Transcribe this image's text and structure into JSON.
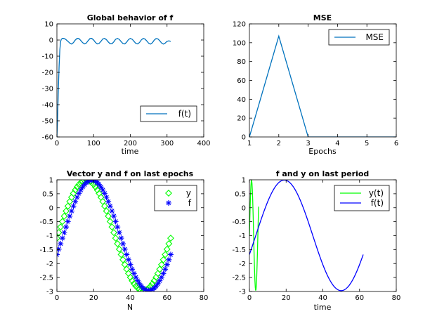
{
  "chart_data": [
    {
      "type": "line",
      "title": "Global behavior of f",
      "xlabel": "time",
      "ylabel": "",
      "xlim": [
        0,
        400
      ],
      "ylim": [
        -60,
        10
      ],
      "xticks": [
        "0",
        "100",
        "200",
        "300",
        "400"
      ],
      "yticks": [
        "10",
        "0",
        "-10",
        "-20",
        "-30",
        "-40",
        "-50",
        "-60"
      ],
      "legend": "bottom-right",
      "series": [
        {
          "name": "f(t)",
          "color": "#0072bd",
          "x": [
            0,
            2,
            4,
            6,
            8,
            10,
            12,
            15,
            18,
            21,
            24,
            27,
            30,
            35,
            40,
            45,
            50,
            55,
            60,
            65,
            70,
            75,
            80,
            85,
            90,
            95,
            100,
            105,
            110,
            115,
            120,
            125,
            130,
            135,
            140,
            145,
            150,
            155,
            160,
            165,
            170,
            175,
            180,
            185,
            190,
            195,
            200,
            205,
            210,
            215,
            220,
            225,
            230,
            235,
            240,
            245,
            250,
            255,
            260,
            265,
            270,
            275,
            280,
            285,
            290,
            295,
            300,
            305,
            310
          ],
          "y": [
            -60,
            -47,
            -30,
            -16,
            -6,
            -1,
            0.5,
            1,
            1,
            0.8,
            0.4,
            -0.2,
            -0.8,
            -1.9,
            -2.5,
            -1.6,
            0.0,
            1.0,
            0.9,
            -0.3,
            -1.6,
            -2.4,
            -1.9,
            -0.4,
            0.9,
            1.0,
            0.0,
            -1.5,
            -2.4,
            -2.1,
            -0.8,
            0.7,
            1.0,
            0.2,
            -1.2,
            -2.3,
            -2.3,
            -1.1,
            0.5,
            1.0,
            0.4,
            -1.0,
            -2.2,
            -2.4,
            -1.3,
            0.3,
            1.0,
            0.5,
            -0.8,
            -2.1,
            -2.4,
            -1.5,
            0.1,
            1.0,
            0.6,
            -0.6,
            -2.0,
            -2.5,
            -1.7,
            -0.1,
            0.9,
            0.7,
            -0.4,
            -1.8,
            -2.5,
            -1.9,
            -0.8,
            -0.5,
            -0.8
          ]
        }
      ]
    },
    {
      "type": "line",
      "title": "MSE",
      "xlabel": "Epochs",
      "ylabel": "",
      "xlim": [
        1,
        6
      ],
      "ylim": [
        0,
        120
      ],
      "xticks": [
        "1",
        "2",
        "3",
        "4",
        "5",
        "6"
      ],
      "yticks": [
        "120",
        "100",
        "80",
        "60",
        "40",
        "20",
        "0"
      ],
      "legend": "top-right",
      "series": [
        {
          "name": "MSE",
          "color": "#0072bd",
          "x": [
            1,
            2,
            3,
            4,
            5,
            6
          ],
          "y": [
            0,
            107,
            0,
            0,
            0,
            0
          ]
        }
      ]
    },
    {
      "type": "scatter",
      "title": "Vector y and f on last epochs",
      "xlabel": "N",
      "ylabel": "",
      "xlim": [
        0,
        80
      ],
      "ylim": [
        -3,
        1
      ],
      "xticks": [
        "0",
        "20",
        "40",
        "60",
        "80"
      ],
      "yticks": [
        "1",
        "0.5",
        "0",
        "-0.5",
        "-1",
        "-1.5",
        "-2",
        "-2.5",
        "-3"
      ],
      "legend": "top-right",
      "series": [
        {
          "name": "y",
          "marker": "diamond",
          "color": "#00ff00",
          "x_start": 0,
          "x_end": 62,
          "count": 63,
          "amplitude": 1.98,
          "center": -0.99,
          "period": 62,
          "peak_at": 16
        },
        {
          "name": "f",
          "marker": "asterisk",
          "color": "#0000ff",
          "x_start": 0,
          "x_end": 62,
          "count": 63,
          "amplitude": 1.98,
          "center": -0.99,
          "period": 62,
          "peak_at": 19
        }
      ]
    },
    {
      "type": "line",
      "title": "f and y on last period",
      "xlabel": "time",
      "ylabel": "",
      "xlim": [
        0,
        80
      ],
      "ylim": [
        -3,
        1
      ],
      "xticks": [
        "0",
        "20",
        "40",
        "60",
        "80"
      ],
      "yticks": [
        "1",
        "0.5",
        "0",
        "-0.5",
        "-1",
        "-1.5",
        "-2",
        "-2.5",
        "-3"
      ],
      "legend": "top-right",
      "series": [
        {
          "name": "y(t)",
          "color": "#00ff00",
          "x_start": 0,
          "x_end": 5,
          "amplitude": 1.98,
          "center": -0.99,
          "period": 4.6,
          "peak_at": 1.15
        },
        {
          "name": "f(t)",
          "color": "#0000ff",
          "x_start": 0,
          "x_end": 62,
          "amplitude": 1.98,
          "center": -0.99,
          "period": 62,
          "peak_at": 19
        }
      ]
    }
  ]
}
